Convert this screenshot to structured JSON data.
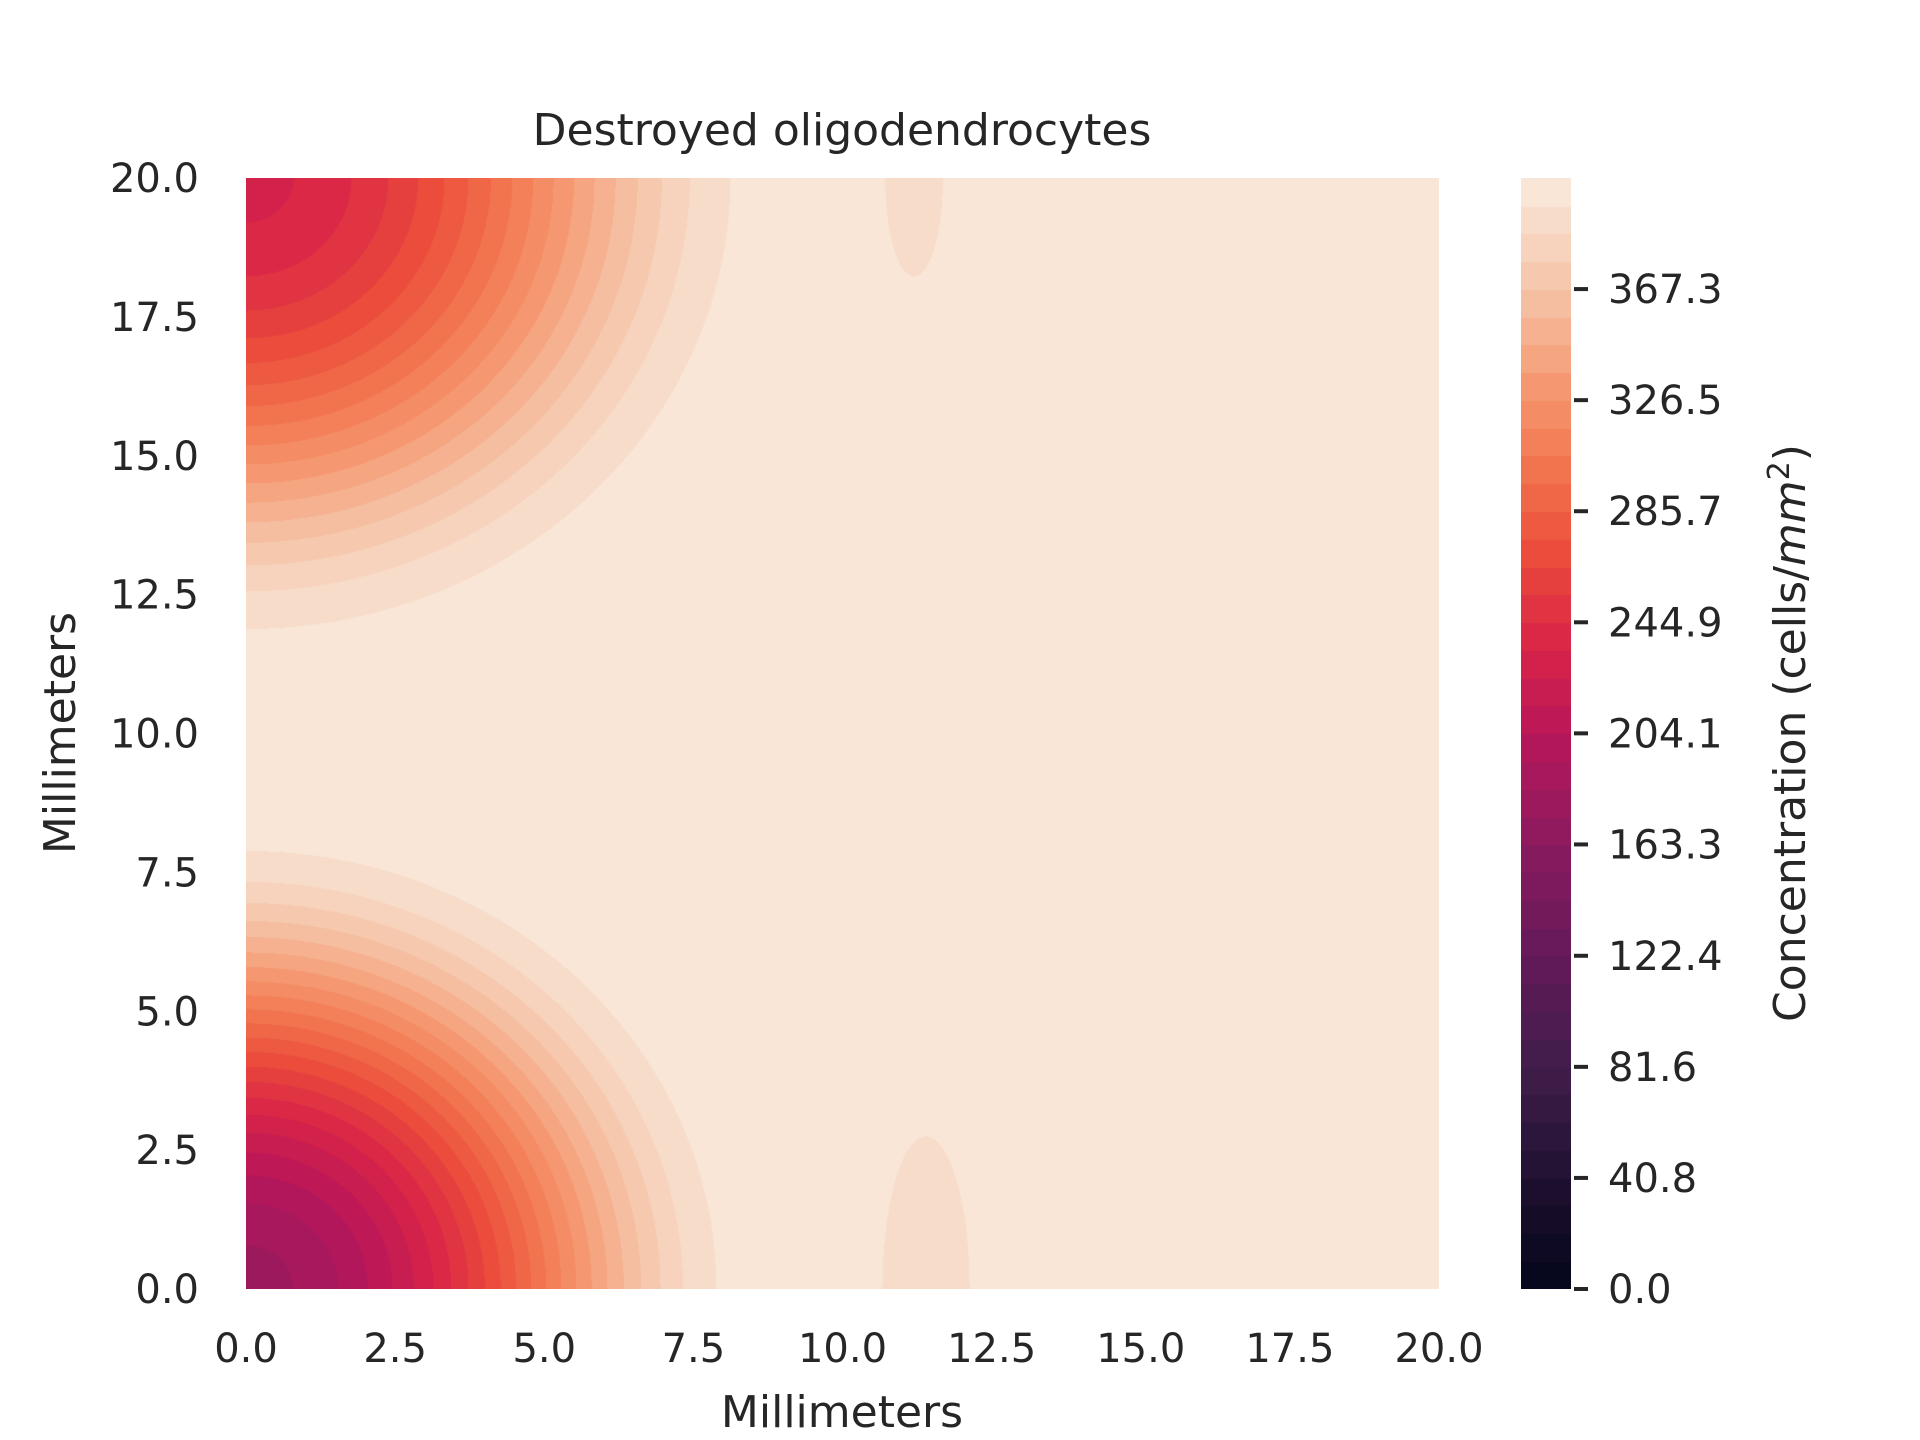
{
  "chart_data": {
    "type": "heatmap",
    "subtype": "filled-contour",
    "title": "Destroyed oligodendrocytes",
    "xlabel": "Millimeters",
    "ylabel": "Millimeters",
    "xlim": [
      0,
      20
    ],
    "ylim": [
      0,
      20
    ],
    "xticks": [
      0.0,
      2.5,
      5.0,
      7.5,
      10.0,
      12.5,
      15.0,
      17.5,
      20.0
    ],
    "yticks": [
      0.0,
      2.5,
      5.0,
      7.5,
      10.0,
      12.5,
      15.0,
      17.5,
      20.0
    ],
    "xtick_labels": [
      "0.0",
      "2.5",
      "5.0",
      "7.5",
      "10.0",
      "12.5",
      "15.0",
      "17.5",
      "20.0"
    ],
    "ytick_labels": [
      "0.0",
      "2.5",
      "5.0",
      "7.5",
      "10.0",
      "12.5",
      "15.0",
      "17.5",
      "20.0"
    ],
    "grid": false,
    "colormap": "rocket",
    "colorbar": {
      "label": "Concentration (cells/mm²)",
      "label_text": "Concentration (cells/",
      "label_unit_italic": "mm",
      "label_superscript": "2",
      "label_close": ")",
      "range": [
        0,
        408.1
      ],
      "levels": 40,
      "ticks": [
        0.0,
        40.8,
        81.6,
        122.4,
        163.3,
        204.1,
        244.9,
        285.7,
        326.5,
        367.3
      ],
      "tick_labels": [
        "0.0",
        "40.8",
        "81.6",
        "122.4",
        "163.3",
        "204.1",
        "244.9",
        "285.7",
        "326.5",
        "367.3"
      ]
    },
    "field": {
      "background": 400,
      "depressions": [
        {
          "x": 0,
          "y": 0,
          "min_value": 180,
          "extent_mm": 8.2
        },
        {
          "x": 0,
          "y": 20,
          "min_value": 232,
          "extent_mm": 8.5
        }
      ],
      "secondary_features": [
        {
          "x": 11.4,
          "y": 0,
          "min_value": 392,
          "extent_x_mm": 0.85,
          "extent_y_mm": 3.2
        },
        {
          "x": 11.2,
          "y": 20,
          "min_value": 394,
          "extent_x_mm": 0.6,
          "extent_y_mm": 2.2
        }
      ]
    },
    "legend": "colorbar-right"
  }
}
